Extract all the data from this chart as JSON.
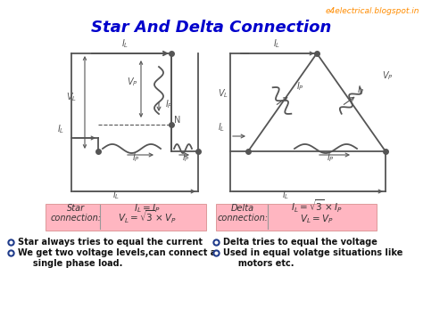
{
  "title": "Star And Delta Connection",
  "title_color": "#0000CC",
  "watermark": "e4electrical.blogspot.in",
  "watermark_color": "#FF8C00",
  "bg_color": "#FFFFFF",
  "pink_box_color": "#FFB6C1",
  "line_color": "#808080",
  "star_label1": "Star",
  "star_label2": "connection:",
  "delta_label1": "Delta",
  "delta_label2": "connection:",
  "bullet_color": "#1E3A8A",
  "bullet1": [
    "Star always tries to equal the current",
    "We get two voltage levels,can connect a",
    "     single phase load."
  ],
  "bullet2": [
    "Delta tries to equal the voltage",
    "Used in equal volatge situations like",
    "     motors etc."
  ]
}
